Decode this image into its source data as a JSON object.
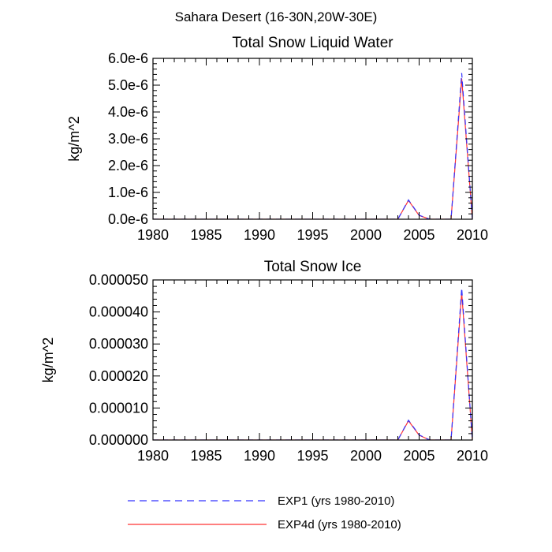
{
  "figure": {
    "title": "Sahara Desert (16-30N,20W-30E)"
  },
  "legend": [
    {
      "label": "EXP1 (yrs 1980-2010)",
      "color": "#3333ff",
      "style": "dashed"
    },
    {
      "label": "EXP4d (yrs 1980-2010)",
      "color": "#ff3333",
      "style": "solid"
    }
  ],
  "chart_data": [
    {
      "type": "line",
      "title": "Total Snow Liquid Water",
      "xlabel": "",
      "ylabel": "kg/m^2",
      "xlim": [
        1980,
        2010
      ],
      "ylim": [
        0,
        6e-06
      ],
      "x_ticks": [
        1980,
        1985,
        1990,
        1995,
        2000,
        2005,
        2010
      ],
      "x_tick_labels": [
        "1980",
        "1985",
        "1990",
        "1995",
        "2000",
        "2005",
        "2010"
      ],
      "y_ticks": [
        0,
        1e-06,
        2e-06,
        3e-06,
        4e-06,
        5e-06,
        6e-06
      ],
      "y_tick_labels": [
        "0.0e-6",
        "1.0e-6",
        "2.0e-6",
        "3.0e-6",
        "4.0e-6",
        "5.0e-6",
        "6.0e-6"
      ],
      "x": [
        1980,
        1981,
        1982,
        1983,
        1984,
        1985,
        1986,
        1987,
        1988,
        1989,
        1990,
        1991,
        1992,
        1993,
        1994,
        1995,
        1996,
        1997,
        1998,
        1999,
        2000,
        2001,
        2002,
        2003,
        2004,
        2005,
        2006,
        2007,
        2008,
        2009,
        2010
      ],
      "series": [
        {
          "name": "EXP1 (yrs 1980-2010)",
          "values": [
            0,
            0,
            0,
            0,
            0,
            0,
            0,
            0,
            0,
            0,
            0,
            0,
            0,
            0,
            0,
            0,
            0,
            0,
            0,
            0,
            0,
            0,
            0,
            0,
            7.2e-07,
            1.5e-07,
            0,
            0,
            0,
            5.45e-06,
            0
          ]
        },
        {
          "name": "EXP4d (yrs 1980-2010)",
          "values": [
            0,
            0,
            0,
            0,
            0,
            0,
            0,
            0,
            0,
            0,
            0,
            0,
            0,
            0,
            0,
            0,
            0,
            0,
            0,
            0,
            0,
            0,
            0,
            0,
            7e-07,
            1.4e-07,
            0,
            0,
            0,
            5.25e-06,
            0
          ]
        }
      ],
      "grid": false
    },
    {
      "type": "line",
      "title": "Total Snow Ice",
      "xlabel": "",
      "ylabel": "kg/m^2",
      "xlim": [
        1980,
        2010
      ],
      "ylim": [
        0,
        5e-05
      ],
      "x_ticks": [
        1980,
        1985,
        1990,
        1995,
        2000,
        2005,
        2010
      ],
      "x_tick_labels": [
        "1980",
        "1985",
        "1990",
        "1995",
        "2000",
        "2005",
        "2010"
      ],
      "y_ticks": [
        0,
        1e-05,
        2e-05,
        3e-05,
        4e-05,
        5e-05
      ],
      "y_tick_labels": [
        "0.000000",
        "0.000010",
        "0.000020",
        "0.000030",
        "0.000040",
        "0.000050"
      ],
      "x": [
        1980,
        1981,
        1982,
        1983,
        1984,
        1985,
        1986,
        1987,
        1988,
        1989,
        1990,
        1991,
        1992,
        1993,
        1994,
        1995,
        1996,
        1997,
        1998,
        1999,
        2000,
        2001,
        2002,
        2003,
        2004,
        2005,
        2006,
        2007,
        2008,
        2009,
        2010
      ],
      "series": [
        {
          "name": "EXP1 (yrs 1980-2010)",
          "values": [
            0,
            0,
            0,
            0,
            0,
            0,
            0,
            0,
            0,
            0,
            0,
            0,
            0,
            0,
            0,
            0,
            0,
            0,
            0,
            0,
            0,
            0,
            0,
            0,
            6.2e-06,
            1.6e-06,
            0,
            0,
            0,
            4.75e-05,
            0
          ]
        },
        {
          "name": "EXP4d (yrs 1980-2010)",
          "values": [
            0,
            0,
            0,
            0,
            0,
            0,
            0,
            0,
            0,
            0,
            0,
            0,
            0,
            0,
            0,
            0,
            0,
            0,
            0,
            0,
            0,
            0,
            0,
            0,
            6e-06,
            1.5e-06,
            0,
            0,
            0,
            4.6e-05,
            0
          ]
        }
      ],
      "grid": false
    }
  ]
}
